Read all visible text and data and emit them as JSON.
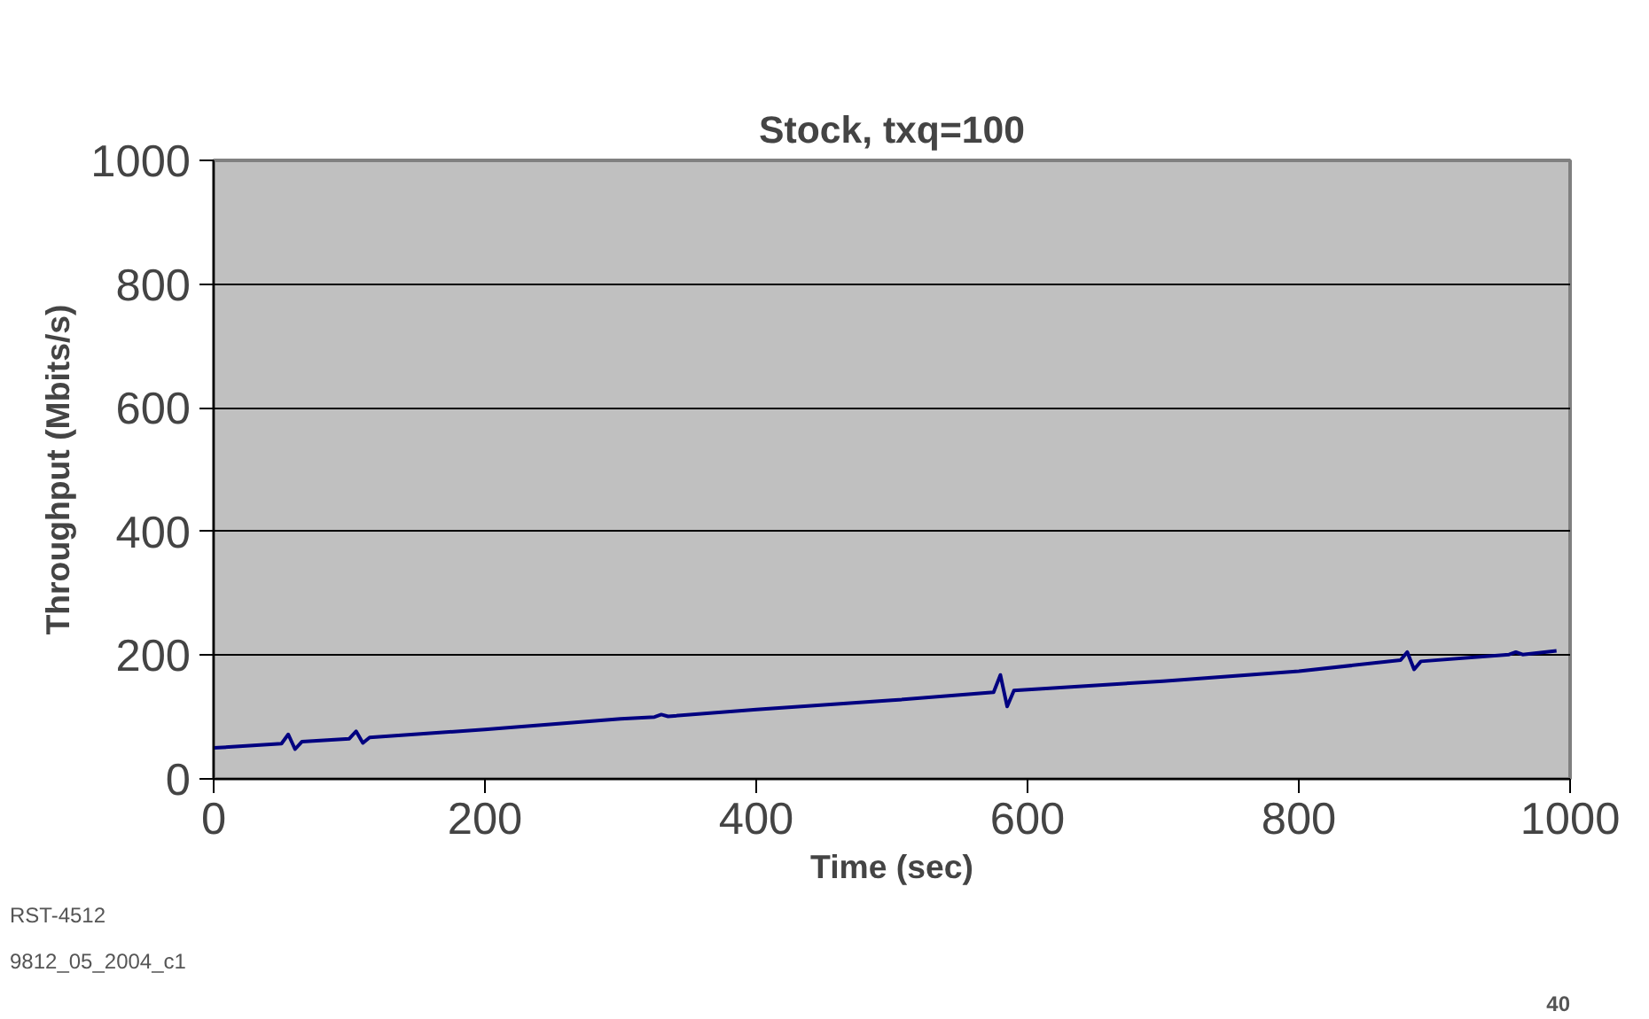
{
  "chart_data": {
    "type": "line",
    "title": "Stock, txq=100",
    "xlabel": "Time (sec)",
    "ylabel": "Throughput (Mbits/s)",
    "x": [
      0,
      50,
      55,
      60,
      65,
      100,
      105,
      110,
      115,
      200,
      300,
      325,
      330,
      335,
      400,
      500,
      575,
      580,
      585,
      590,
      700,
      800,
      875,
      880,
      885,
      890,
      955,
      960,
      965,
      990
    ],
    "series": [
      {
        "color": "#000080",
        "values": [
          50,
          57,
          72,
          48,
          60,
          65,
          77,
          58,
          67,
          80,
          97,
          100,
          104,
          101,
          112,
          127,
          140,
          168,
          117,
          143,
          158,
          174,
          192,
          205,
          177,
          190,
          201,
          205,
          201,
          207
        ]
      }
    ],
    "xlim": [
      0,
      1000
    ],
    "ylim": [
      0,
      1000
    ],
    "xticks": [
      0,
      200,
      400,
      600,
      800,
      1000
    ],
    "yticks": [
      0,
      200,
      400,
      600,
      800,
      1000
    ],
    "grid": "y",
    "marker": "none",
    "line_style": "solid",
    "annotations": [
      "RST-4512",
      "9812_05_2004_c1",
      "40"
    ]
  }
}
